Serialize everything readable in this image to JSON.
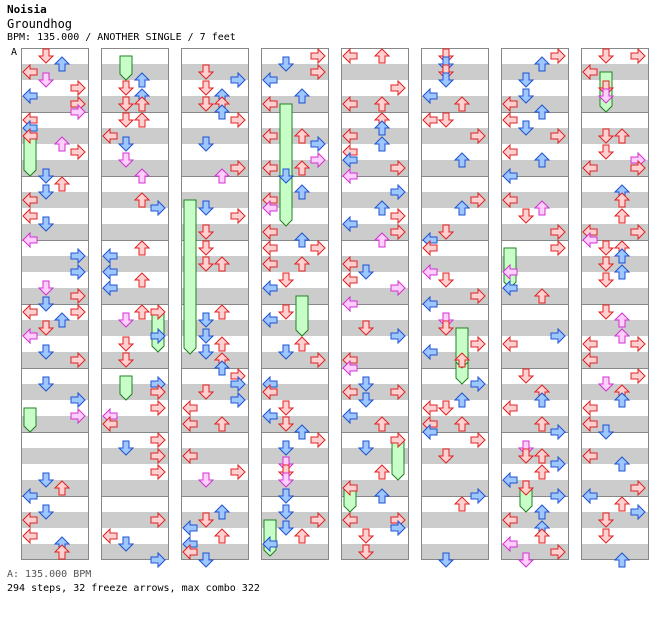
{
  "song": {
    "artist": "Noisia",
    "title": "Groundhog",
    "info": "BPM: 135.000 / ANOTHER SINGLE / 7 feet"
  },
  "bpm_marker": "A",
  "footer": {
    "bpm": "A: 135.000 BPM",
    "stats": "294 steps, 32 freeze arrows, max combo 322"
  },
  "colors": {
    "stripe": "#cccccc",
    "border": "#888888",
    "measure_line": "#888888",
    "quarter_red_fill": "#ffd0d0",
    "quarter_red_stroke": "#e02020",
    "eighth_blue_fill": "#9cc8ff",
    "eighth_blue_stroke": "#2050d0",
    "sixteenth_pink_fill": "#ffd0ff",
    "sixteenth_pink_stroke": "#d030d0",
    "freeze_fill": "#c8ffc8",
    "freeze_stroke": "#208020"
  },
  "chart_data": {
    "type": "step-chart",
    "lanes": [
      "left",
      "down",
      "up",
      "right"
    ],
    "measures_per_column": 8,
    "column_count": 8,
    "total_measures": 57,
    "notes_sample": [
      {
        "col": 0,
        "lane": 0,
        "t": 0.05,
        "kind": "q"
      },
      {
        "col": 0,
        "lane": 3,
        "t": 0.05,
        "kind": "q"
      },
      {
        "col": 0,
        "lane": 0,
        "t": 0.3,
        "kind": "q"
      },
      {
        "col": 0,
        "lane": 2,
        "t": 0.55,
        "kind": "q"
      },
      {
        "col": 0,
        "lane": 3,
        "t": 0.55,
        "kind": "q"
      },
      {
        "col": 0,
        "lane": 1,
        "t": 0.8,
        "kind": "q"
      }
    ]
  }
}
